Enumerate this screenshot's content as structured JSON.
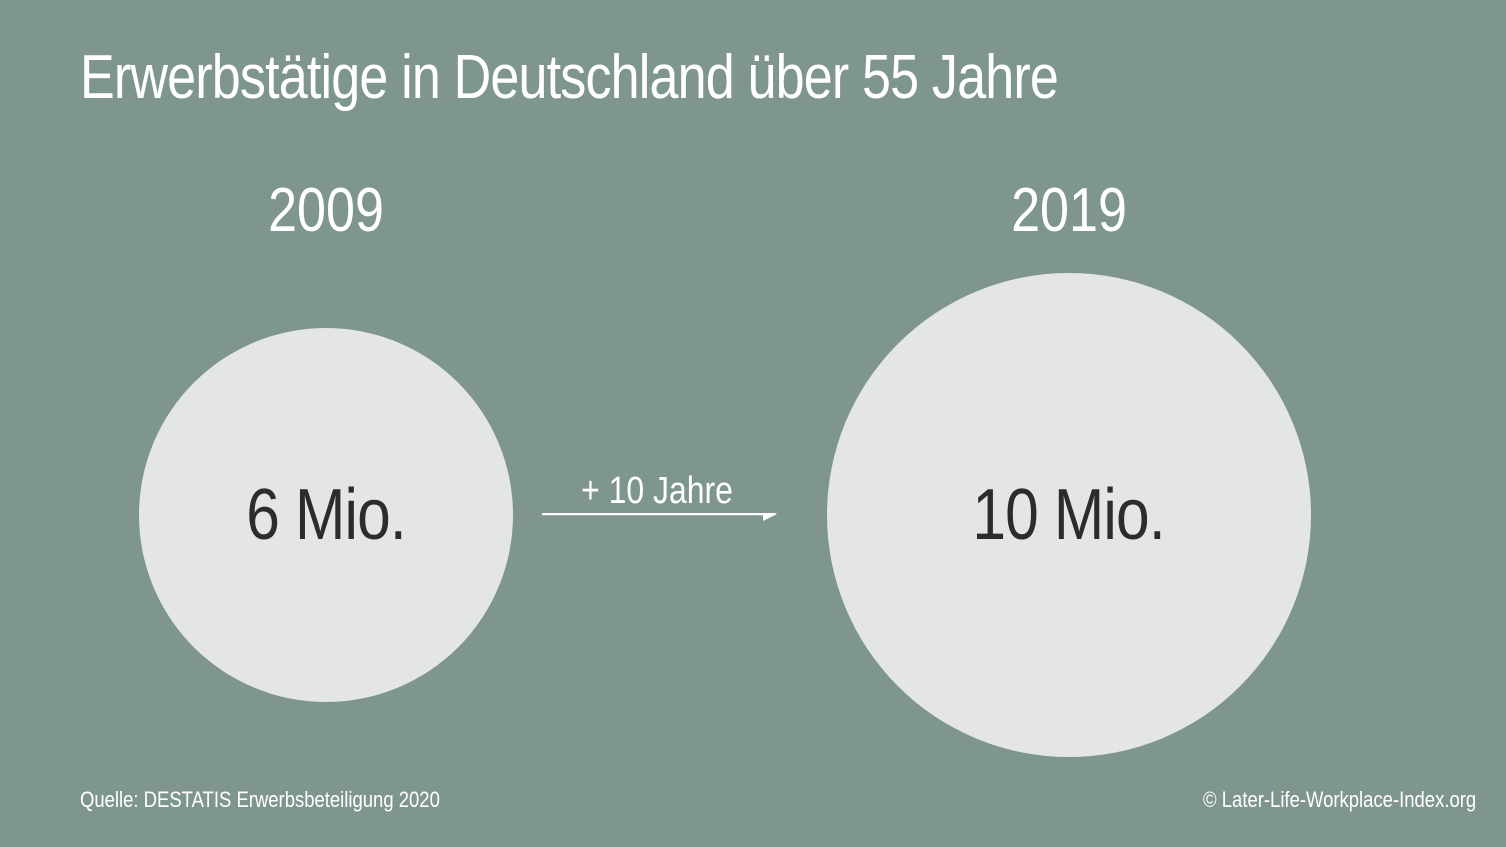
{
  "title": "Erwerbstätige in Deutschland über 55 Jahre",
  "colors": {
    "background": "#7f968d",
    "circle": "#e3e6e5",
    "text_light": "#ffffff",
    "text_dark": "#2c2c2c"
  },
  "chart_data": {
    "type": "bubble",
    "title": "Erwerbstätige in Deutschland über 55 Jahre",
    "unit": "Mio.",
    "points": [
      {
        "year": "2009",
        "value": 6,
        "label": "6 Mio."
      },
      {
        "year": "2019",
        "value": 10,
        "label": "10 Mio."
      }
    ],
    "transition": {
      "label": "+ 10 Jahre"
    }
  },
  "footer": {
    "source": "Quelle: DESTATIS Erwerbsbeteiligung 2020",
    "copyright": "© Later-Life-Workplace-Index.org"
  }
}
